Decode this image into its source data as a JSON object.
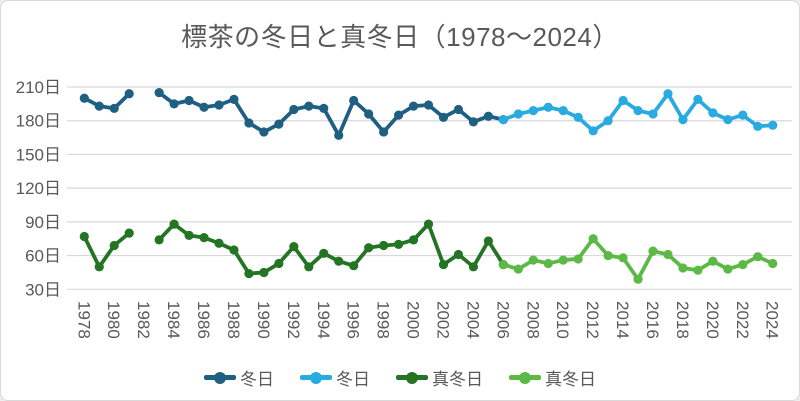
{
  "title": "標茶の冬日と真冬日（1978～2024）",
  "colors": {
    "background": "#FFFFFF",
    "border": "#D9D9D9",
    "grid": "#D9D9D9",
    "text": "#595959"
  },
  "y_axis": {
    "tick_values": [
      30,
      60,
      90,
      120,
      150,
      180,
      210
    ],
    "tick_labels": [
      "30日",
      "60日",
      "90日",
      "120日",
      "150日",
      "180日",
      "210日"
    ]
  },
  "x_axis": {
    "tick_years": [
      1978,
      1980,
      1982,
      1984,
      1986,
      1988,
      1990,
      1992,
      1994,
      1996,
      1998,
      2000,
      2002,
      2004,
      2006,
      2008,
      2010,
      2012,
      2014,
      2016,
      2018,
      2020,
      2022,
      2024
    ]
  },
  "chart_data": {
    "type": "line",
    "title": "標茶の冬日と真冬日（1978～2024）",
    "xlabel": "",
    "ylabel": "",
    "x_range": [
      1978,
      2024
    ],
    "ylim": [
      30,
      210
    ],
    "y_gridline_step": 30,
    "grid": "horizontal-only",
    "legend_position": "bottom",
    "marker": "circle",
    "series": [
      {
        "name": "冬日",
        "color": "#1F5F82",
        "start_year": 1978,
        "values": [
          200,
          193,
          191,
          204,
          null,
          205,
          195,
          198,
          192,
          194,
          199,
          178,
          170,
          177,
          190,
          193,
          191,
          167,
          198,
          186,
          170,
          185,
          193,
          194,
          183,
          190,
          179,
          184,
          181
        ]
      },
      {
        "name": "冬日",
        "color": "#29ABE2",
        "start_year": 2006,
        "values": [
          181,
          186,
          189,
          192,
          189,
          183,
          171,
          180,
          198,
          189,
          186,
          204,
          181,
          199,
          187,
          181,
          185,
          175,
          176
        ]
      },
      {
        "name": "真冬日",
        "color": "#237423",
        "start_year": 1978,
        "values": [
          77,
          50,
          69,
          80,
          null,
          74,
          88,
          78,
          76,
          71,
          65,
          44,
          45,
          53,
          68,
          50,
          62,
          55,
          51,
          67,
          69,
          70,
          74,
          88,
          52,
          61,
          50,
          73,
          52
        ]
      },
      {
        "name": "真冬日",
        "color": "#5CB946",
        "start_year": 2006,
        "values": [
          52,
          48,
          56,
          53,
          56,
          57,
          75,
          60,
          58,
          39,
          64,
          61,
          49,
          47,
          55,
          48,
          52,
          59,
          53
        ]
      }
    ]
  }
}
